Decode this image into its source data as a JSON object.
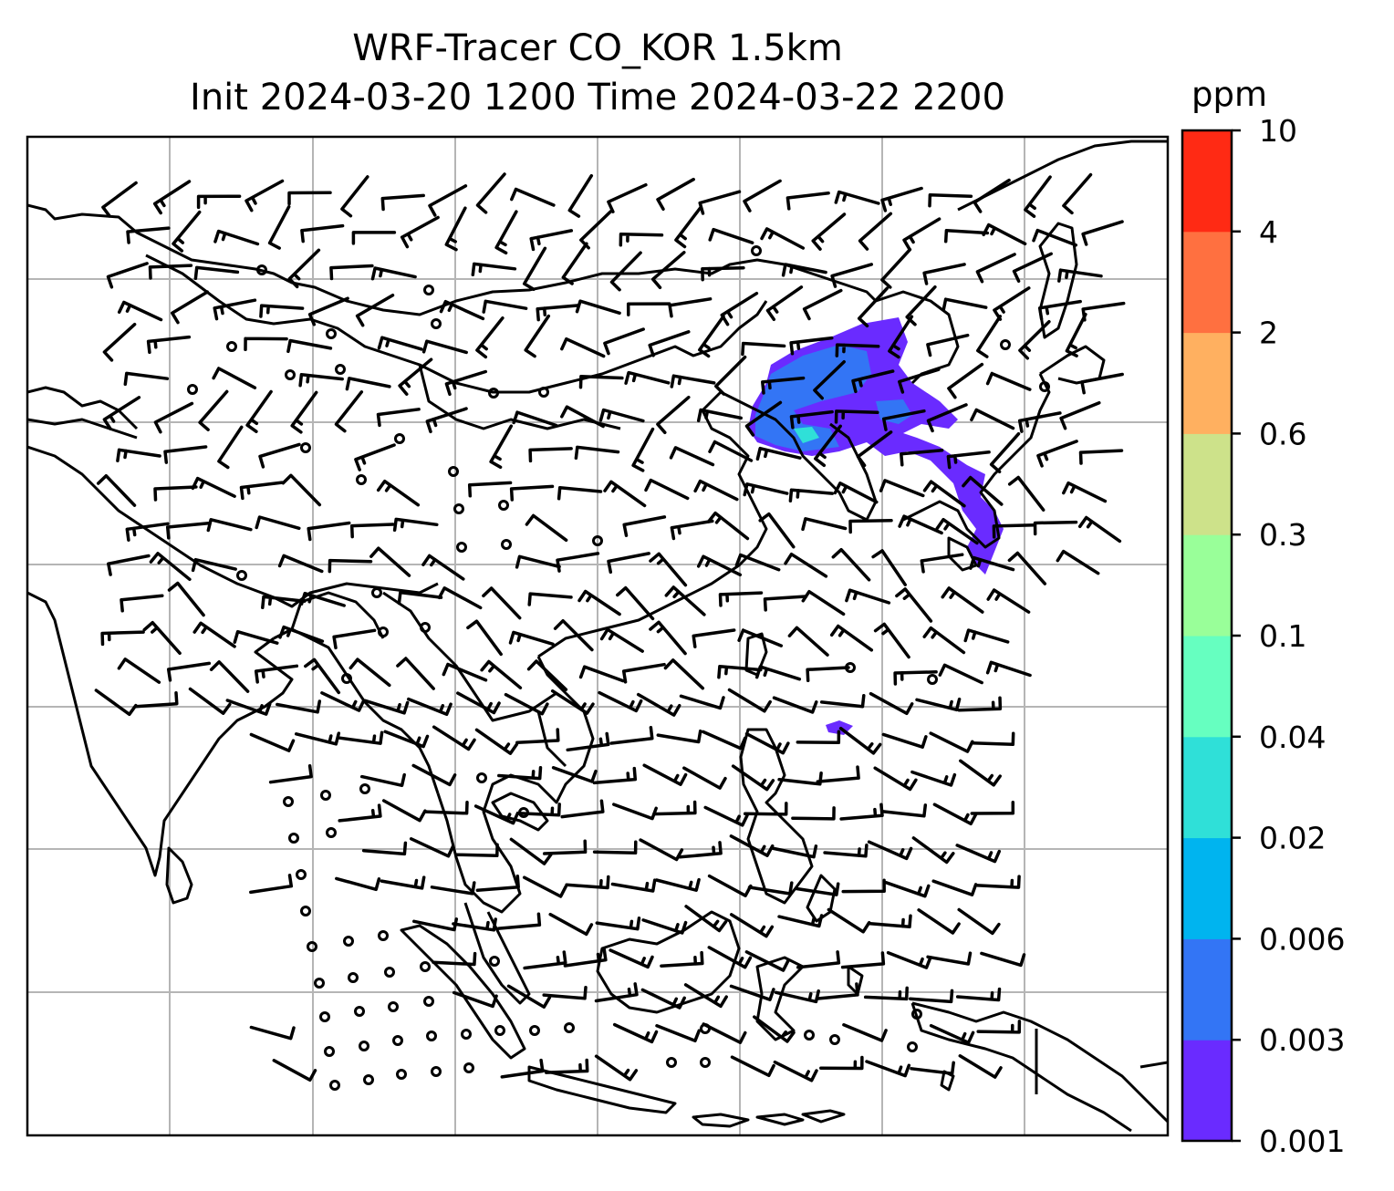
{
  "title": {
    "line1": "WRF-Tracer CO_KOR 1.5km",
    "line2": "Init 2024-03-20 1200 Time 2024-03-22 2200"
  },
  "colorbar": {
    "unit": "ppm",
    "levels": [
      "0.001",
      "0.003",
      "0.006",
      "0.02",
      "0.04",
      "0.1",
      "0.3",
      "0.6",
      "2",
      "4",
      "10"
    ],
    "colors": [
      "#6a2bff",
      "#3375f5",
      "#00b4ef",
      "#2fe0d8",
      "#66ffc0",
      "#99ff99",
      "#cde28a",
      "#ffb060",
      "#ff7040",
      "#ff2a14"
    ]
  },
  "map": {
    "type": "wind-barbs-and-tracer-concentration",
    "region": "East & Southeast Asia",
    "grid": true,
    "coastline_color": "#000000"
  }
}
